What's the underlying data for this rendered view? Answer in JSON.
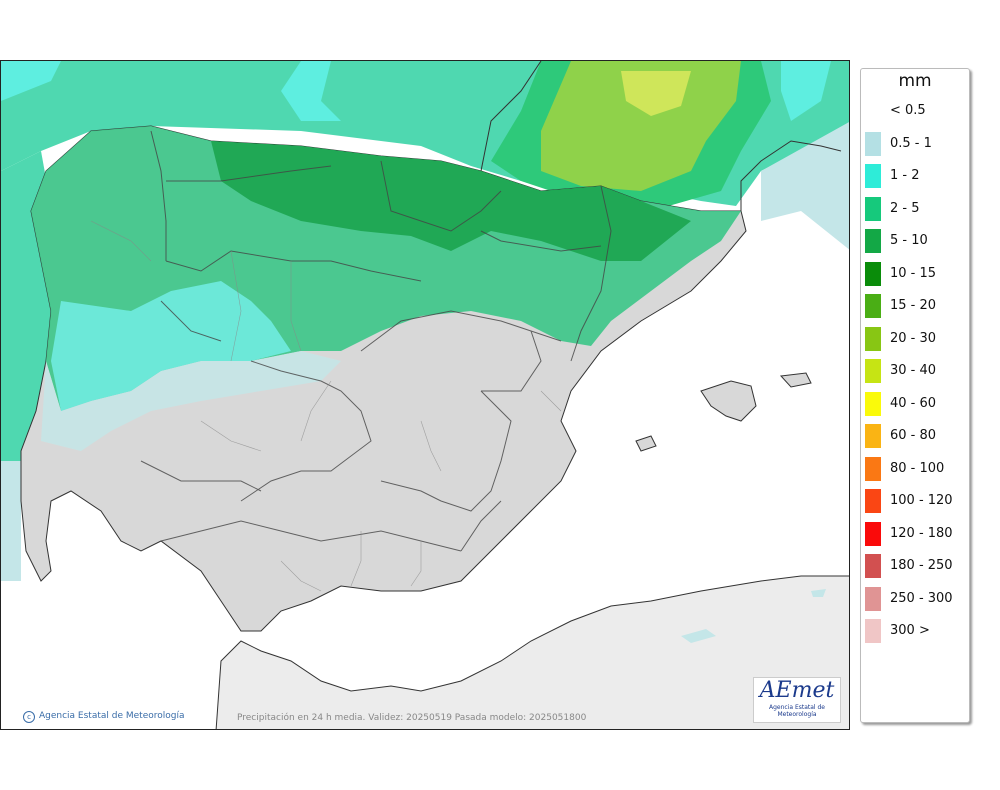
{
  "map": {
    "caption": "Precipitación en 24 h media. Validez: 20250519 Pasada modelo: 2025051800",
    "copyright": "Agencia Estatal de Meteorología",
    "logo_text": "AEmet",
    "logo_subtitle": "Agencia Estatal de Meteorología",
    "icons": {
      "copyright": "copyright-icon"
    }
  },
  "legend": {
    "unit": "mm",
    "items": [
      {
        "label": "< 0.5",
        "color": "#ffffff"
      },
      {
        "label": "0.5 - 1",
        "color": "#b4e0e4"
      },
      {
        "label": "1 - 2",
        "color": "#2eecd8"
      },
      {
        "label": "2 - 5",
        "color": "#16c97c"
      },
      {
        "label": "5 - 10",
        "color": "#13a846"
      },
      {
        "label": "10 - 15",
        "color": "#0a8c0a"
      },
      {
        "label": "15 - 20",
        "color": "#4aae15"
      },
      {
        "label": "20 - 30",
        "color": "#88c614"
      },
      {
        "label": "30 - 40",
        "color": "#c6e414"
      },
      {
        "label": "40 - 60",
        "color": "#fafa0a"
      },
      {
        "label": "60 - 80",
        "color": "#fab414"
      },
      {
        "label": "80 - 100",
        "color": "#fa7814"
      },
      {
        "label": "100 - 120",
        "color": "#fa4614"
      },
      {
        "label": "120 - 180",
        "color": "#fa0a0a"
      },
      {
        "label": "180 - 250",
        "color": "#d25050"
      },
      {
        "label": "250 - 300",
        "color": "#e09494"
      },
      {
        "label": "300 >",
        "color": "#f0c6c6"
      }
    ]
  }
}
